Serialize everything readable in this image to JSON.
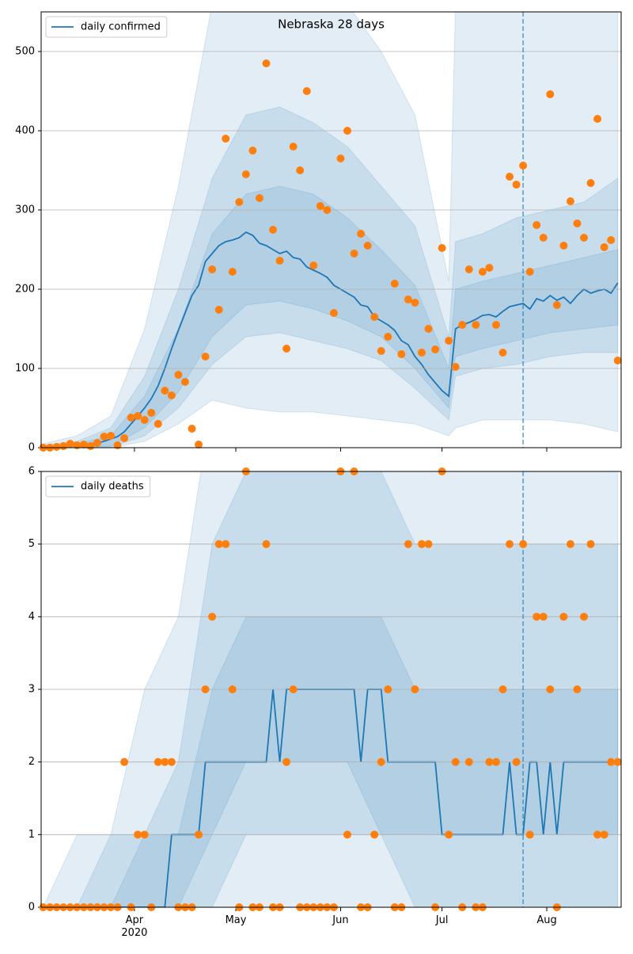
{
  "chart_data": [
    {
      "type": "line",
      "title": "Nebraska 28 days",
      "x": [
        65,
        67,
        69,
        71,
        73,
        75,
        77,
        79,
        81,
        83,
        85,
        87,
        89,
        91,
        93,
        95,
        97,
        99,
        101,
        103,
        105,
        107,
        109,
        111,
        113,
        115,
        117,
        119,
        121,
        123,
        125,
        127,
        129,
        131,
        133,
        135,
        137,
        139,
        141,
        143,
        145,
        147,
        149,
        151,
        153,
        155,
        157,
        159,
        161,
        163,
        165,
        167,
        169,
        171,
        173,
        175,
        177,
        179,
        181,
        183,
        185,
        187,
        189,
        191,
        193,
        195,
        197,
        199,
        201,
        203,
        205,
        207,
        209,
        211,
        213,
        215,
        217,
        219,
        221,
        223,
        225,
        227,
        229,
        231,
        233,
        235
      ],
      "series": [
        {
          "name": "daily confirmed",
          "color": "#1f77b4",
          "values": [
            1,
            1,
            1,
            2,
            2,
            3,
            4,
            5,
            6,
            8,
            11,
            14,
            20,
            30,
            40,
            50,
            62,
            78,
            100,
            125,
            148,
            170,
            192,
            205,
            235,
            245,
            255,
            260,
            262,
            265,
            272,
            268,
            258,
            255,
            250,
            245,
            248,
            240,
            238,
            228,
            224,
            220,
            215,
            205,
            200,
            195,
            190,
            180,
            178,
            165,
            160,
            155,
            148,
            135,
            130,
            115,
            105,
            92,
            82,
            72,
            65,
            150,
            155,
            158,
            162,
            167,
            168,
            165,
            172,
            178,
            180,
            182,
            175,
            188,
            185,
            192,
            186,
            190,
            182,
            192,
            200,
            195,
            198,
            200,
            195,
            208
          ]
        }
      ],
      "points": {
        "color": "#ff7f0e",
        "values": [
          0,
          0,
          1,
          2,
          5,
          3,
          4,
          2,
          6,
          14,
          15,
          3,
          12,
          38,
          40,
          35,
          44,
          30,
          72,
          66,
          92,
          83,
          24,
          4,
          115,
          225,
          174,
          390,
          222,
          310,
          345,
          375,
          315,
          485,
          275,
          236,
          125,
          380,
          350,
          450,
          230,
          305,
          300,
          170,
          365,
          400,
          245,
          270,
          255,
          165,
          122,
          140,
          207,
          118,
          187,
          183,
          120,
          150,
          124,
          252,
          135,
          102,
          155,
          225,
          155,
          222,
          227,
          155,
          120,
          342,
          332,
          356,
          222,
          281,
          265,
          446,
          180,
          255,
          311,
          283,
          265,
          334,
          415,
          253,
          262,
          110
        ]
      },
      "band_color": "#1f77b4",
      "band_x": [
        65,
        75,
        85,
        95,
        105,
        115,
        125,
        135,
        145,
        155,
        165,
        175,
        185,
        187,
        195,
        205,
        215,
        225,
        235
      ],
      "bands": [
        {
          "lower": [
            0,
            0,
            0,
            8,
            30,
            60,
            50,
            45,
            45,
            40,
            35,
            30,
            15,
            25,
            35,
            35,
            35,
            30,
            20
          ],
          "upper": [
            5,
            15,
            40,
            150,
            330,
            560,
            560,
            560,
            560,
            560,
            500,
            420,
            210,
            560,
            560,
            560,
            560,
            560,
            560
          ]
        },
        {
          "lower": [
            0,
            0,
            1,
            15,
            50,
            105,
            140,
            145,
            135,
            125,
            110,
            75,
            35,
            90,
            100,
            105,
            115,
            120,
            120
          ],
          "upper": [
            3,
            8,
            25,
            90,
            200,
            340,
            420,
            430,
            410,
            380,
            330,
            280,
            140,
            260,
            270,
            290,
            300,
            310,
            340
          ]
        },
        {
          "lower": [
            0,
            0,
            2,
            25,
            70,
            140,
            180,
            185,
            175,
            160,
            140,
            100,
            50,
            115,
            125,
            135,
            145,
            150,
            155
          ],
          "upper": [
            2,
            5,
            15,
            65,
            150,
            270,
            320,
            330,
            320,
            290,
            250,
            205,
            100,
            200,
            210,
            220,
            230,
            240,
            250
          ]
        }
      ],
      "vline_x": 207,
      "xlim": [
        64.4,
        236
      ],
      "ylim": [
        0,
        550
      ],
      "yticks": [
        0,
        100,
        200,
        300,
        400,
        500
      ],
      "grid": true,
      "legend": "upper left"
    },
    {
      "type": "line",
      "x": [
        65,
        67,
        69,
        71,
        73,
        75,
        77,
        79,
        81,
        83,
        85,
        87,
        89,
        91,
        93,
        95,
        97,
        99,
        101,
        103,
        105,
        107,
        109,
        111,
        113,
        115,
        117,
        119,
        121,
        123,
        125,
        127,
        129,
        131,
        133,
        135,
        137,
        139,
        141,
        143,
        145,
        147,
        149,
        151,
        153,
        155,
        157,
        159,
        161,
        163,
        165,
        167,
        169,
        171,
        173,
        175,
        177,
        179,
        181,
        183,
        185,
        187,
        189,
        191,
        193,
        195,
        197,
        199,
        201,
        203,
        205,
        207,
        209,
        211,
        213,
        215,
        217,
        219,
        221,
        223,
        225,
        227,
        229,
        231,
        233,
        235
      ],
      "series": [
        {
          "name": "daily deaths",
          "color": "#1f77b4",
          "values": [
            0,
            0,
            0,
            0,
            0,
            0,
            0,
            0,
            0,
            0,
            0,
            0,
            0,
            0,
            0,
            0,
            0,
            0,
            0,
            1,
            1,
            1,
            1,
            1,
            2,
            2,
            2,
            2,
            2,
            2,
            2,
            2,
            2,
            2,
            3,
            2,
            3,
            3,
            3,
            3,
            3,
            3,
            3,
            3,
            3,
            3,
            3,
            2,
            3,
            3,
            3,
            2,
            2,
            2,
            2,
            2,
            2,
            2,
            2,
            1,
            1,
            1,
            1,
            1,
            1,
            1,
            1,
            1,
            1,
            2,
            1,
            1,
            2,
            2,
            1,
            2,
            1,
            2,
            2,
            2,
            2,
            2,
            2,
            2,
            2,
            2
          ]
        }
      ],
      "points": {
        "color": "#ff7f0e",
        "values": [
          0,
          0,
          0,
          0,
          0,
          0,
          0,
          0,
          0,
          0,
          0,
          0,
          2,
          0,
          1,
          1,
          0,
          2,
          2,
          2,
          0,
          0,
          0,
          1,
          3,
          4,
          5,
          5,
          3,
          0,
          6,
          0,
          0,
          5,
          0,
          0,
          2,
          3,
          0,
          0,
          0,
          0,
          0,
          0,
          6,
          1,
          6,
          0,
          0,
          1,
          2,
          3,
          0,
          0,
          5,
          3,
          5,
          5,
          0,
          6,
          1,
          2,
          0,
          2,
          0,
          0,
          2,
          2,
          3,
          5,
          2,
          5,
          1,
          4,
          4,
          3,
          0,
          4,
          5,
          3,
          4,
          5,
          1,
          1,
          2,
          2
        ]
      },
      "band_color": "#1f77b4",
      "band_x": [
        65,
        75,
        85,
        95,
        105,
        115,
        125,
        135,
        145,
        155,
        165,
        175,
        185,
        187,
        195,
        205,
        215,
        225,
        235
      ],
      "bands": [
        {
          "lower": [
            0,
            0,
            0,
            0,
            0,
            0,
            0,
            0,
            0,
            0,
            0,
            0,
            0,
            0,
            0,
            0,
            0,
            0,
            0
          ],
          "upper": [
            0,
            1,
            1,
            3,
            4,
            7,
            7,
            7,
            7,
            7,
            7,
            7,
            7,
            7,
            7,
            7,
            7,
            7,
            7
          ]
        },
        {
          "lower": [
            0,
            0,
            0,
            0,
            0,
            0,
            1,
            1,
            1,
            1,
            1,
            0,
            0,
            0,
            0,
            0,
            0,
            0,
            0
          ],
          "upper": [
            0,
            0,
            1,
            1,
            2,
            5,
            6,
            6,
            6,
            6,
            6,
            5,
            5,
            5,
            5,
            5,
            5,
            5,
            5
          ]
        },
        {
          "lower": [
            0,
            0,
            0,
            0,
            0,
            1,
            2,
            2,
            2,
            2,
            1,
            1,
            1,
            1,
            1,
            1,
            1,
            1,
            1
          ],
          "upper": [
            0,
            0,
            0,
            1,
            1,
            3,
            4,
            4,
            4,
            4,
            4,
            3,
            3,
            3,
            3,
            3,
            3,
            3,
            3
          ]
        }
      ],
      "vline_x": 207,
      "xlim": [
        64.4,
        236
      ],
      "ylim": [
        0,
        6
      ],
      "yticks": [
        0,
        1,
        2,
        3,
        4,
        5,
        6
      ],
      "xticks": [
        {
          "value": 92,
          "label": "Apr\n2020"
        },
        {
          "value": 122,
          "label": "May"
        },
        {
          "value": 153,
          "label": "Jun"
        },
        {
          "value": 183,
          "label": "Jul"
        },
        {
          "value": 214,
          "label": "Aug"
        }
      ],
      "grid": true,
      "legend": "upper left"
    }
  ]
}
